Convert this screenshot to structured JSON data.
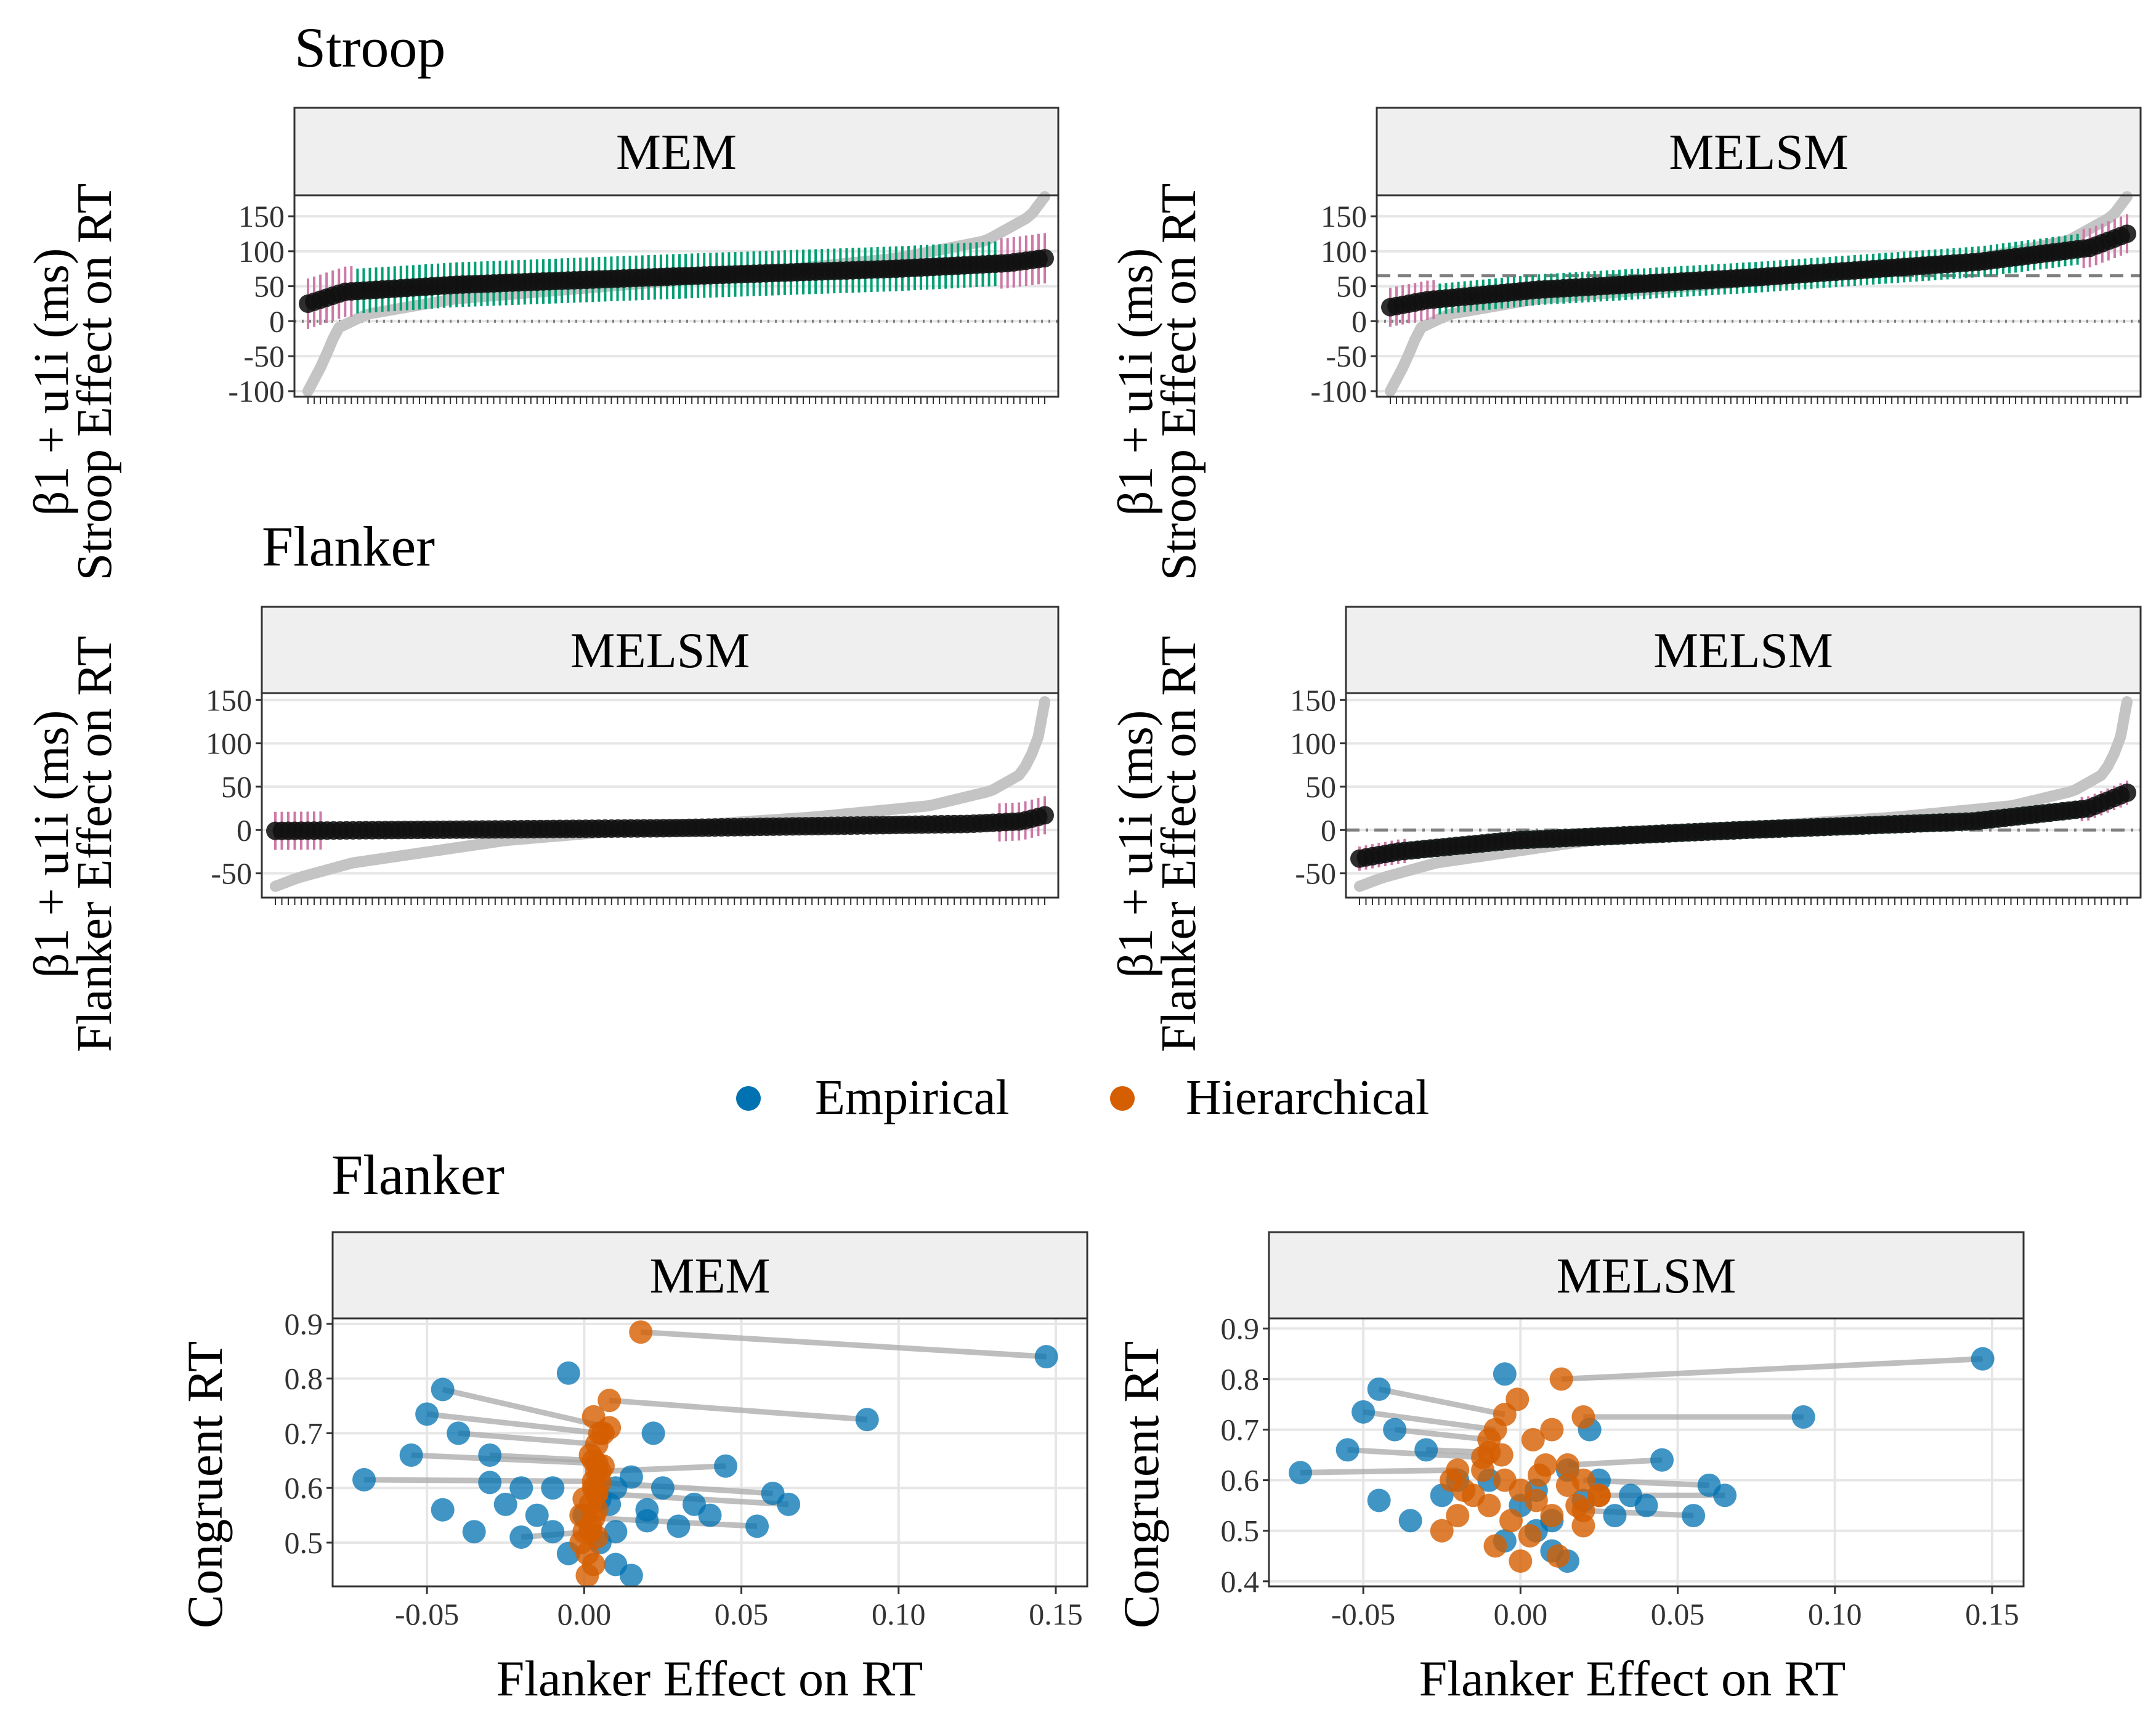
{
  "figure": {
    "legend": [
      {
        "label": "Empirical",
        "color": "#0072B2"
      },
      {
        "label": "Hierarchical",
        "color": "#D55E00"
      }
    ]
  },
  "colors": {
    "empirical": "#0072B2",
    "hierarchical": "#D55E00",
    "estimate": "#111111",
    "empirical_line": "#C4C4C4",
    "ci_green": "#009E73",
    "ci_pink": "#CC79A7",
    "strip_bg": "#EFEFEF",
    "reference_line": "#808080"
  },
  "chart_data": [
    {
      "id": "stroop-mem",
      "type": "line",
      "section_title": "Stroop",
      "strip": "MEM",
      "ylabel_expr": "β1 + u1i (ms)",
      "ylabel_text": "Stroop Effect on RT",
      "ylim": [
        -108,
        180
      ],
      "yticks": [
        150,
        100,
        50,
        0,
        -50,
        -100
      ],
      "yticklabels": [
        "150",
        "100",
        "50",
        "0",
        "-50",
        "-100"
      ],
      "n_subjects": 120,
      "grid": true,
      "reference_lines": [
        {
          "y": 0,
          "style": "dotted"
        }
      ],
      "estimate_quantiles": [
        [
          0,
          25
        ],
        [
          0.05,
          42
        ],
        [
          0.2,
          52
        ],
        [
          0.5,
          64
        ],
        [
          0.8,
          75
        ],
        [
          0.95,
          83
        ],
        [
          1,
          90
        ]
      ],
      "empirical_quantiles": [
        [
          0,
          -100
        ],
        [
          0.02,
          -60
        ],
        [
          0.04,
          -10
        ],
        [
          0.08,
          10
        ],
        [
          0.2,
          32
        ],
        [
          0.5,
          58
        ],
        [
          0.8,
          90
        ],
        [
          0.92,
          115
        ],
        [
          0.98,
          150
        ],
        [
          1,
          178
        ]
      ],
      "ci_half_width": 32,
      "ci_half_width_edges": 36
    },
    {
      "id": "stroop-melsm",
      "type": "line",
      "section_title": "",
      "strip": "MELSM",
      "ylabel_expr": "β1 + u1i (ms)",
      "ylabel_text": "Stroop Effect on RT",
      "ylim": [
        -108,
        180
      ],
      "yticks": [
        150,
        100,
        50,
        0,
        -50,
        -100
      ],
      "yticklabels": [
        "150",
        "100",
        "50",
        "0",
        "-50",
        "-100"
      ],
      "n_subjects": 120,
      "grid": true,
      "reference_lines": [
        {
          "y": 0,
          "style": "dotted"
        },
        {
          "y": 65,
          "style": "dashed"
        }
      ],
      "estimate_quantiles": [
        [
          0,
          20
        ],
        [
          0.05,
          30
        ],
        [
          0.2,
          45
        ],
        [
          0.5,
          63
        ],
        [
          0.8,
          85
        ],
        [
          0.95,
          105
        ],
        [
          1,
          125
        ]
      ],
      "empirical_quantiles": [
        [
          0,
          -100
        ],
        [
          0.02,
          -60
        ],
        [
          0.04,
          -10
        ],
        [
          0.08,
          10
        ],
        [
          0.2,
          32
        ],
        [
          0.5,
          58
        ],
        [
          0.8,
          90
        ],
        [
          0.92,
          115
        ],
        [
          0.98,
          150
        ],
        [
          1,
          178
        ]
      ],
      "ci_half_width": 22,
      "ci_half_width_edges": 28
    },
    {
      "id": "flanker-mem",
      "type": "line",
      "section_title": "Flanker",
      "strip": "MELSM",
      "ylabel_expr": "β1 + u1i (ms)",
      "ylabel_text": "Flanker Effect on RT",
      "ylim": [
        -78,
        158
      ],
      "yticks": [
        150,
        100,
        50,
        0,
        -50
      ],
      "yticklabels": [
        "150",
        "100",
        "50",
        "0",
        "-50"
      ],
      "n_subjects": 120,
      "grid": true,
      "reference_lines": [],
      "estimate_quantiles": [
        [
          0,
          -1
        ],
        [
          0.5,
          2
        ],
        [
          0.9,
          7
        ],
        [
          0.97,
          10
        ],
        [
          1,
          17
        ]
      ],
      "empirical_quantiles": [
        [
          0,
          -65
        ],
        [
          0.03,
          -55
        ],
        [
          0.1,
          -38
        ],
        [
          0.3,
          -12
        ],
        [
          0.5,
          3
        ],
        [
          0.7,
          15
        ],
        [
          0.85,
          28
        ],
        [
          0.93,
          45
        ],
        [
          0.97,
          65
        ],
        [
          0.99,
          100
        ],
        [
          1,
          148
        ]
      ],
      "ci_half_width": 6,
      "ci_half_width_edges": 22
    },
    {
      "id": "flanker-melsm",
      "type": "line",
      "section_title": "",
      "strip": "MELSM",
      "ylabel_expr": "β1 + u1i (ms)",
      "ylabel_text": "Flanker Effect on RT",
      "ylim": [
        -78,
        158
      ],
      "yticks": [
        150,
        100,
        50,
        0,
        -50
      ],
      "yticklabels": [
        "150",
        "100",
        "50",
        "0",
        "-50"
      ],
      "n_subjects": 120,
      "grid": true,
      "reference_lines": [
        {
          "y": 0,
          "style": "dotdash"
        }
      ],
      "estimate_quantiles": [
        [
          0,
          -33
        ],
        [
          0.05,
          -25
        ],
        [
          0.2,
          -12
        ],
        [
          0.5,
          0
        ],
        [
          0.8,
          10
        ],
        [
          0.95,
          25
        ],
        [
          1,
          43
        ]
      ],
      "empirical_quantiles": [
        [
          0,
          -65
        ],
        [
          0.03,
          -55
        ],
        [
          0.1,
          -38
        ],
        [
          0.3,
          -12
        ],
        [
          0.5,
          3
        ],
        [
          0.7,
          15
        ],
        [
          0.85,
          28
        ],
        [
          0.93,
          45
        ],
        [
          0.97,
          65
        ],
        [
          0.99,
          100
        ],
        [
          1,
          148
        ]
      ],
      "ci_half_width": 10,
      "ci_half_width_edges": 14
    },
    {
      "id": "flanker-scatter-mem",
      "type": "scatter",
      "section_title": "Flanker",
      "strip": "MEM",
      "xlabel": "Flanker Effect on RT",
      "ylabel": "Congruent RT",
      "xlim": [
        -0.08,
        0.16
      ],
      "ylim": [
        0.42,
        0.91
      ],
      "xticks": [
        -0.05,
        0.0,
        0.05,
        0.1,
        0.15
      ],
      "xticklabels": [
        "-0.05",
        "0.00",
        "0.05",
        "0.10",
        "0.15"
      ],
      "yticks": [
        0.9,
        0.8,
        0.7,
        0.6,
        0.5
      ],
      "yticklabels": [
        "0.9",
        "0.8",
        "0.7",
        "0.6",
        "0.5"
      ],
      "grid": true,
      "pairs": [
        [
          0.147,
          0.84,
          0.018,
          0.885
        ],
        [
          0.09,
          0.725,
          0.008,
          0.76
        ],
        [
          -0.045,
          0.78,
          0.008,
          0.71
        ],
        [
          -0.04,
          0.7,
          0.004,
          0.68
        ],
        [
          -0.05,
          0.735,
          0.005,
          0.7
        ],
        [
          -0.07,
          0.615,
          0.003,
          0.612
        ],
        [
          -0.055,
          0.66,
          0.004,
          0.645
        ],
        [
          0.06,
          0.59,
          0.005,
          0.61
        ],
        [
          0.065,
          0.57,
          0.004,
          0.59
        ],
        [
          0.055,
          0.53,
          0.003,
          0.545
        ],
        [
          -0.03,
          0.66,
          0.003,
          0.65
        ],
        [
          0.045,
          0.64,
          0.004,
          0.63
        ],
        [
          -0.02,
          0.51,
          0.002,
          0.52
        ]
      ],
      "empirical_only": [
        [
          -0.005,
          0.81
        ],
        [
          -0.035,
          0.52
        ],
        [
          -0.025,
          0.57
        ],
        [
          -0.01,
          0.6
        ],
        [
          -0.015,
          0.55
        ],
        [
          0.01,
          0.52
        ],
        [
          0.02,
          0.56
        ],
        [
          0.025,
          0.6
        ],
        [
          0.03,
          0.53
        ],
        [
          0.035,
          0.57
        ],
        [
          0.01,
          0.46
        ],
        [
          0.015,
          0.44
        ],
        [
          0.005,
          0.5
        ],
        [
          -0.005,
          0.48
        ],
        [
          0.0,
          0.55
        ],
        [
          0.005,
          0.58
        ],
        [
          -0.01,
          0.52
        ],
        [
          0.015,
          0.62
        ],
        [
          0.02,
          0.54
        ],
        [
          -0.02,
          0.6
        ],
        [
          -0.03,
          0.61
        ],
        [
          0.04,
          0.55
        ],
        [
          0.022,
          0.7
        ],
        [
          0.01,
          0.6
        ],
        [
          -0.045,
          0.56
        ],
        [
          0.008,
          0.57
        ]
      ],
      "hierarchical_only": [
        [
          0.003,
          0.46
        ],
        [
          0.001,
          0.44
        ],
        [
          -0.001,
          0.5
        ],
        [
          0.002,
          0.53
        ],
        [
          0.004,
          0.56
        ],
        [
          0.0,
          0.58
        ],
        [
          0.003,
          0.6
        ],
        [
          0.005,
          0.63
        ],
        [
          0.002,
          0.66
        ],
        [
          -0.001,
          0.55
        ],
        [
          0.004,
          0.51
        ],
        [
          0.001,
          0.48
        ],
        [
          0.006,
          0.7
        ],
        [
          0.003,
          0.73
        ],
        [
          0.002,
          0.57
        ],
        [
          0.004,
          0.59
        ],
        [
          0.0,
          0.52
        ],
        [
          0.006,
          0.64
        ]
      ]
    },
    {
      "id": "flanker-scatter-melsm",
      "type": "scatter",
      "section_title": "",
      "strip": "MELSM",
      "xlabel": "Flanker Effect on RT",
      "ylabel": "Congruent RT",
      "xlim": [
        -0.08,
        0.16
      ],
      "ylim": [
        0.39,
        0.92
      ],
      "xticks": [
        -0.05,
        0.0,
        0.05,
        0.1,
        0.15
      ],
      "xticklabels": [
        "-0.05",
        "0.00",
        "0.05",
        "0.10",
        "0.15"
      ],
      "yticks": [
        0.9,
        0.8,
        0.7,
        0.6,
        0.5,
        0.4
      ],
      "yticklabels": [
        "0.9",
        "0.8",
        "0.7",
        "0.6",
        "0.5",
        "0.4"
      ],
      "grid": true,
      "pairs": [
        [
          0.147,
          0.84,
          0.013,
          0.8
        ],
        [
          0.09,
          0.725,
          0.02,
          0.725
        ],
        [
          -0.045,
          0.78,
          -0.005,
          0.73
        ],
        [
          -0.04,
          0.7,
          -0.01,
          0.68
        ],
        [
          -0.05,
          0.735,
          -0.008,
          0.7
        ],
        [
          -0.07,
          0.615,
          -0.02,
          0.62
        ],
        [
          -0.055,
          0.66,
          -0.012,
          0.645
        ],
        [
          0.06,
          0.59,
          0.02,
          0.6
        ],
        [
          0.065,
          0.57,
          0.025,
          0.57
        ],
        [
          0.055,
          0.53,
          0.02,
          0.54
        ],
        [
          -0.03,
          0.66,
          -0.01,
          0.655
        ],
        [
          0.045,
          0.64,
          0.015,
          0.63
        ]
      ],
      "empirical_only": [
        [
          -0.005,
          0.81
        ],
        [
          -0.035,
          0.52
        ],
        [
          -0.025,
          0.57
        ],
        [
          -0.01,
          0.6
        ],
        [
          0.01,
          0.52
        ],
        [
          0.02,
          0.56
        ],
        [
          0.025,
          0.6
        ],
        [
          0.03,
          0.53
        ],
        [
          0.035,
          0.57
        ],
        [
          0.01,
          0.46
        ],
        [
          0.015,
          0.44
        ],
        [
          0.005,
          0.5
        ],
        [
          -0.005,
          0.48
        ],
        [
          0.0,
          0.55
        ],
        [
          0.005,
          0.58
        ],
        [
          0.015,
          0.62
        ],
        [
          -0.02,
          0.6
        ],
        [
          0.04,
          0.55
        ],
        [
          0.022,
          0.7
        ],
        [
          -0.045,
          0.56
        ]
      ],
      "hierarchical_only": [
        [
          -0.025,
          0.5
        ],
        [
          -0.02,
          0.53
        ],
        [
          -0.015,
          0.57
        ],
        [
          -0.01,
          0.55
        ],
        [
          -0.005,
          0.6
        ],
        [
          0.0,
          0.58
        ],
        [
          0.005,
          0.56
        ],
        [
          0.01,
          0.53
        ],
        [
          0.015,
          0.59
        ],
        [
          0.02,
          0.51
        ],
        [
          -0.012,
          0.62
        ],
        [
          -0.006,
          0.65
        ],
        [
          0.004,
          0.68
        ],
        [
          0.008,
          0.63
        ],
        [
          -0.003,
          0.52
        ],
        [
          0.003,
          0.49
        ],
        [
          -0.008,
          0.47
        ],
        [
          0.012,
          0.45
        ],
        [
          0.0,
          0.44
        ],
        [
          -0.018,
          0.58
        ],
        [
          0.018,
          0.55
        ],
        [
          0.025,
          0.57
        ],
        [
          -0.022,
          0.6
        ],
        [
          0.006,
          0.61
        ],
        [
          -0.001,
          0.76
        ],
        [
          0.01,
          0.7
        ]
      ]
    }
  ]
}
